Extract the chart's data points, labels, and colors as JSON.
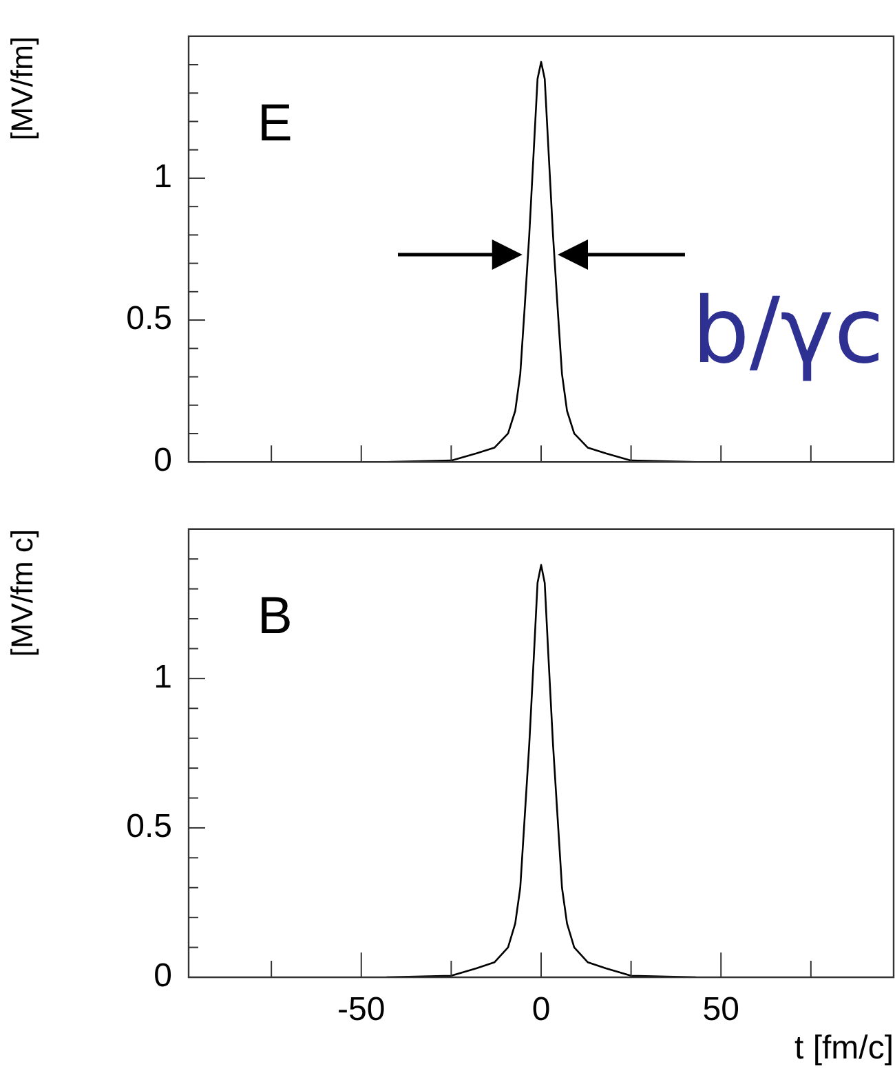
{
  "chart_data": [
    {
      "type": "line",
      "ylabel": "[MV/fm]",
      "tick_labels": "y",
      "marker": "none",
      "annotations": [
        "E",
        "b/γc"
      ],
      "xlim": [
        -98,
        98
      ],
      "xticks": [
        {
          "value": -75,
          "label": null
        },
        {
          "value": -50,
          "label": null
        },
        {
          "value": -25,
          "label": null
        },
        {
          "value": 0,
          "label": null
        },
        {
          "value": 25,
          "label": null
        },
        {
          "value": 50,
          "label": null
        },
        {
          "value": 75,
          "label": null
        }
      ],
      "ylim": [
        0,
        1.5
      ],
      "yticks": [
        0,
        {
          "value": 0.1,
          "label": null
        },
        {
          "value": 0.2,
          "label": null
        },
        {
          "value": 0.3,
          "label": null
        },
        {
          "value": 0.4,
          "label": null
        },
        0.5,
        {
          "value": 0.6,
          "label": null
        },
        {
          "value": 0.7,
          "label": null
        },
        {
          "value": 0.8,
          "label": null
        },
        {
          "value": 0.9,
          "label": null
        },
        1,
        {
          "value": 1.1,
          "label": null
        },
        {
          "value": 1.2,
          "label": null
        },
        {
          "value": 1.3,
          "label": null
        },
        {
          "value": 1.4,
          "label": null
        }
      ],
      "x": [
        -43,
        -25,
        -18,
        -13,
        -9.2,
        -7.2,
        -5.8,
        -4.6,
        -3.3,
        -2,
        -1,
        0,
        1,
        2,
        3.3,
        4.6,
        5.8,
        7.2,
        9.2,
        13,
        18,
        25,
        43
      ],
      "series": [
        {
          "color": "#000000",
          "values": [
            0,
            0.005,
            0.03,
            0.05,
            0.1,
            0.18,
            0.31,
            0.54,
            0.8,
            1.11,
            1.35,
            1.41,
            1.35,
            1.11,
            0.8,
            0.54,
            0.31,
            0.18,
            0.1,
            0.05,
            0.03,
            0.005,
            0
          ]
        }
      ]
    },
    {
      "type": "line",
      "ylabel": "[MV/fm c]",
      "xlabel": "t [fm/c]",
      "marker": "none",
      "annotations": [
        "B"
      ],
      "xlim": [
        -98,
        98
      ],
      "xticks": [
        {
          "value": -75,
          "label": null
        },
        -50,
        {
          "value": -25,
          "label": null
        },
        0,
        {
          "value": 25,
          "label": null
        },
        50,
        {
          "value": 75,
          "label": null
        }
      ],
      "ylim": [
        0,
        1.5
      ],
      "yticks": [
        0,
        {
          "value": 0.1,
          "label": null
        },
        {
          "value": 0.2,
          "label": null
        },
        {
          "value": 0.3,
          "label": null
        },
        {
          "value": 0.4,
          "label": null
        },
        0.5,
        {
          "value": 0.6,
          "label": null
        },
        {
          "value": 0.7,
          "label": null
        },
        {
          "value": 0.8,
          "label": null
        },
        {
          "value": 0.9,
          "label": null
        },
        1,
        {
          "value": 1.1,
          "label": null
        },
        {
          "value": 1.2,
          "label": null
        },
        {
          "value": 1.3,
          "label": null
        },
        {
          "value": 1.4,
          "label": null
        }
      ],
      "x": [
        -43,
        -25,
        -18,
        -13,
        -9.2,
        -7.2,
        -5.8,
        -4.6,
        -3.3,
        -2,
        -1,
        0,
        1,
        2,
        3.3,
        4.6,
        5.8,
        7.2,
        9.2,
        13,
        18,
        25,
        43
      ],
      "series": [
        {
          "color": "#000000",
          "values": [
            0,
            0.005,
            0.03,
            0.05,
            0.1,
            0.18,
            0.3,
            0.53,
            0.78,
            1.08,
            1.32,
            1.38,
            1.32,
            1.08,
            0.78,
            0.53,
            0.3,
            0.18,
            0.1,
            0.05,
            0.03,
            0.005,
            0
          ]
        }
      ]
    }
  ]
}
